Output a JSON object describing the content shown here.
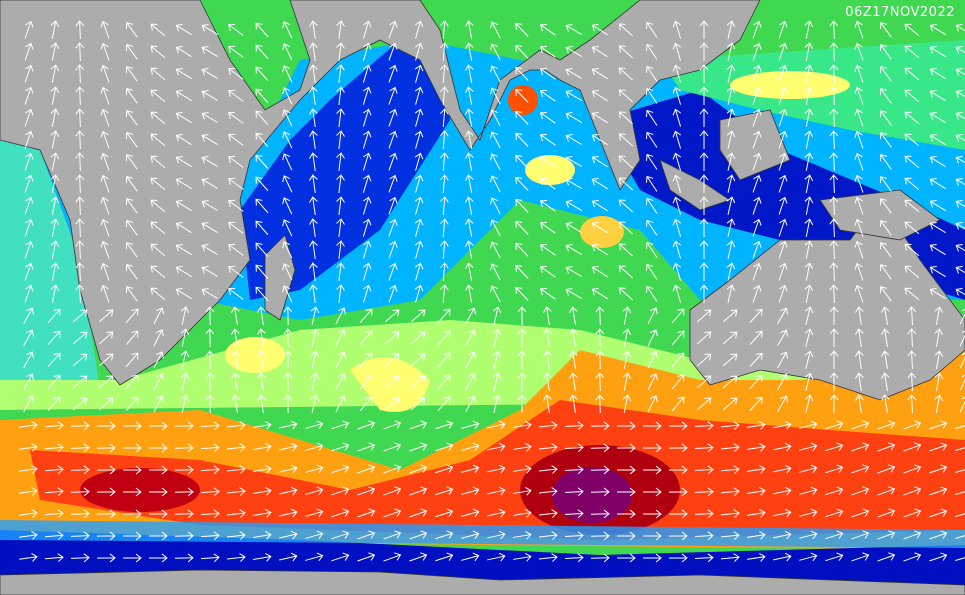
{
  "timestamp": "06Z17NOV2022"
}
